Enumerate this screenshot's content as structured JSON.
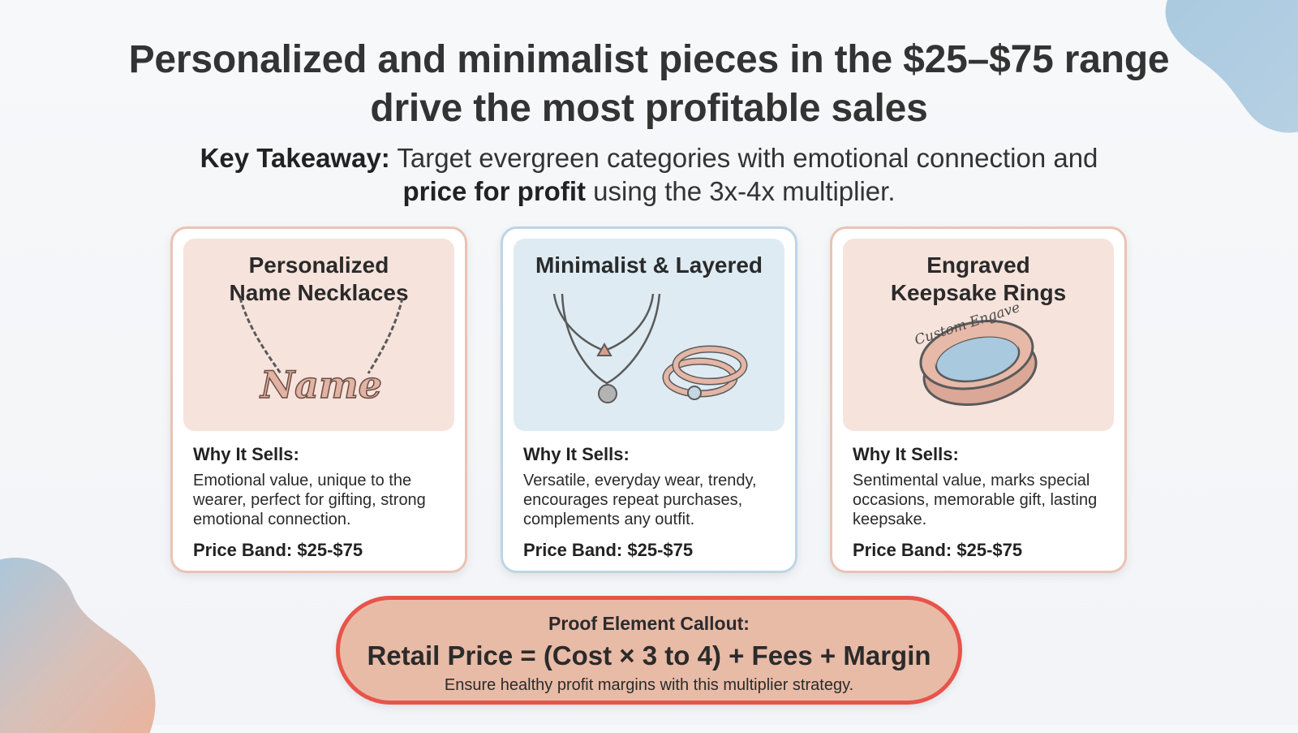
{
  "title": "Personalized and minimalist pieces in the $25–$75 range drive the most profitable sales",
  "takeaway": {
    "label": "Key Takeaway:",
    "text_1": "Target evergreen categories with emotional connection and",
    "bold": "price for profit",
    "text_2": "using the 3x-4x multiplier."
  },
  "cards": [
    {
      "title": "Personalized Name Necklaces",
      "illustration_text": "Name",
      "why_label": "Why It Sells:",
      "description": "Emotional value, unique to the wearer, perfect for gifting, strong emotional connection.",
      "price": "Price Band: $25-$75"
    },
    {
      "title": "Minimalist & Layered",
      "why_label": "Why It Sells:",
      "description": "Versatile, everyday wear, trendy, encourages repeat purchases, complements any outfit.",
      "price": "Price Band: $25-$75"
    },
    {
      "title": "Engraved Keepsake Rings",
      "illustration_text": "Custom Engave",
      "why_label": "Why It Sells:",
      "description": "Sentimental value, marks special occasions, memorable gift, lasting keepsake.",
      "price": "Price Band: $25-$75"
    }
  ],
  "callout": {
    "label": "Proof Element Callout:",
    "formula": "Retail Price = (Cost × 3 to 4) + Fees + Margin",
    "note": "Ensure healthy profit margins with this multiplier strategy."
  },
  "colors": {
    "accent_pink": "#eac3b3",
    "accent_blue": "#bcd5e6",
    "callout_border": "#e8534a",
    "callout_fill": "#e8bba7",
    "rose_gold": "#d9a08c"
  },
  "icons": [
    "name-necklace-icon",
    "layered-necklace-icon",
    "stacked-rings-icon",
    "engraved-ring-icon"
  ]
}
